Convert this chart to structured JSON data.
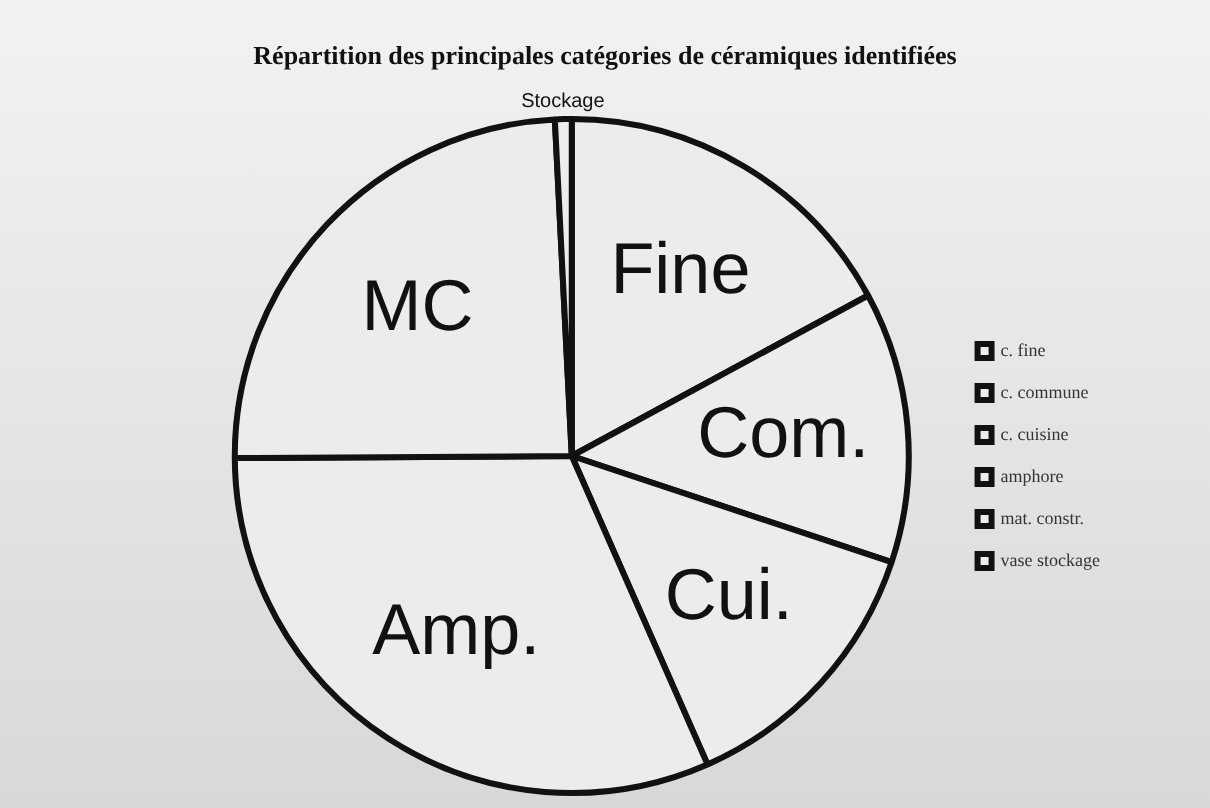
{
  "chart_data": {
    "type": "pie",
    "title": "Répartition des principales catégories de céramiques identifiées",
    "categories": [
      "c. fine",
      "c. commune",
      "c. cuisine",
      "amphore",
      "mat. constr.",
      "vase stockage"
    ],
    "values": [
      17.1,
      13.0,
      13.3,
      31.5,
      24.3,
      0.8
    ],
    "value_labels": [
      "Fine",
      "Com.",
      "Cui.",
      "Amp.",
      "MC",
      "Stockage"
    ],
    "colors": [
      "#ececec",
      "#ececec",
      "#ececec",
      "#ececec",
      "#ececec",
      "#ececec"
    ],
    "legend": "right"
  }
}
